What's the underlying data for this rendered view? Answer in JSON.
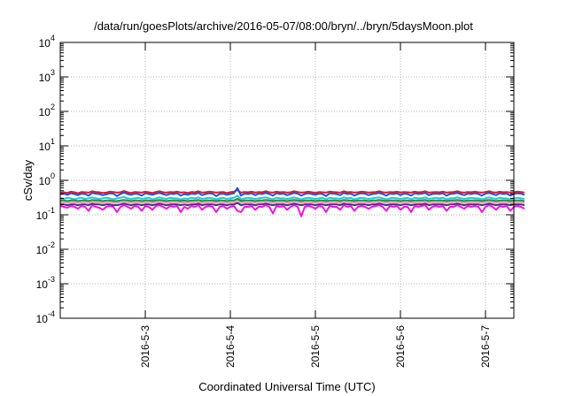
{
  "chart_data": {
    "type": "line",
    "title": "/data/run/goesPlots/archive/2016-05-07/08:00/bryn/../bryn/5daysMoon.plot",
    "xlabel": "Coordinated Universal Time (UTC)",
    "ylabel": "cSv/day",
    "yscale": "log",
    "ylim": [
      0.0001,
      10000
    ],
    "xlim": [
      "2016-05-02 00:00",
      "2016-05-07 08:00"
    ],
    "grid": true,
    "legend": "none",
    "y_ticks": [
      {
        "value": 0.0001,
        "base": "10",
        "exp": "-4"
      },
      {
        "value": 0.001,
        "base": "10",
        "exp": "-3"
      },
      {
        "value": 0.01,
        "base": "10",
        "exp": "-2"
      },
      {
        "value": 0.1,
        "base": "10",
        "exp": "-1"
      },
      {
        "value": 1,
        "base": "10",
        "exp": "0"
      },
      {
        "value": 10,
        "base": "10",
        "exp": "1"
      },
      {
        "value": 100,
        "base": "10",
        "exp": "2"
      },
      {
        "value": 1000,
        "base": "10",
        "exp": "3"
      },
      {
        "value": 10000,
        "base": "10",
        "exp": "4"
      }
    ],
    "x_ticks": [
      "2016-5-3",
      "2016-5-4",
      "2016-5-5",
      "2016-5-6",
      "2016-5-7"
    ],
    "sample_interval_hours": 1,
    "series": [
      {
        "color": "#e8141e",
        "values": [
          0.44,
          0.45,
          0.43,
          0.47,
          0.45,
          0.42,
          0.46,
          0.45,
          0.44,
          0.48,
          0.46,
          0.45,
          0.43,
          0.44,
          0.47,
          0.46,
          0.44,
          0.45,
          0.49,
          0.45,
          0.43,
          0.46,
          0.45,
          0.44,
          0.47,
          0.45,
          0.43,
          0.46,
          0.48,
          0.45,
          0.44,
          0.46,
          0.45,
          0.47,
          0.44,
          0.45,
          0.43,
          0.46,
          0.45,
          0.48,
          0.44,
          0.45,
          0.47,
          0.46,
          0.44,
          0.45,
          0.46,
          0.43,
          0.45,
          0.47,
          0.52,
          0.44,
          0.46,
          0.45,
          0.47,
          0.44,
          0.46,
          0.45,
          0.48,
          0.45,
          0.44,
          0.47,
          0.45,
          0.46,
          0.44,
          0.45,
          0.48,
          0.46,
          0.44,
          0.45,
          0.47,
          0.45,
          0.43,
          0.46,
          0.45,
          0.44,
          0.47,
          0.46,
          0.45,
          0.44,
          0.48,
          0.45,
          0.46,
          0.44,
          0.45,
          0.47,
          0.46,
          0.44,
          0.45,
          0.46,
          0.48,
          0.45,
          0.44,
          0.46,
          0.45,
          0.47,
          0.44,
          0.46,
          0.45,
          0.44,
          0.47,
          0.45,
          0.46,
          0.48,
          0.44,
          0.45,
          0.46,
          0.45,
          0.47,
          0.44,
          0.45,
          0.46,
          0.48,
          0.45,
          0.44,
          0.46,
          0.45,
          0.47,
          0.45,
          0.44,
          0.46,
          0.48,
          0.45,
          0.44,
          0.47,
          0.45,
          0.46,
          0.44,
          0.45,
          0.47,
          0.46,
          0.44
        ]
      },
      {
        "color": "#1e50e6",
        "values": [
          0.4,
          0.41,
          0.38,
          0.42,
          0.4,
          0.37,
          0.41,
          0.4,
          0.36,
          0.43,
          0.41,
          0.4,
          0.37,
          0.39,
          0.42,
          0.41,
          0.35,
          0.4,
          0.44,
          0.4,
          0.38,
          0.41,
          0.4,
          0.36,
          0.42,
          0.4,
          0.38,
          0.41,
          0.43,
          0.4,
          0.37,
          0.41,
          0.4,
          0.42,
          0.36,
          0.4,
          0.38,
          0.41,
          0.4,
          0.43,
          0.37,
          0.4,
          0.42,
          0.41,
          0.35,
          0.4,
          0.41,
          0.38,
          0.4,
          0.42,
          0.6,
          0.36,
          0.41,
          0.4,
          0.42,
          0.37,
          0.41,
          0.4,
          0.43,
          0.4,
          0.36,
          0.42,
          0.4,
          0.41,
          0.37,
          0.4,
          0.43,
          0.41,
          0.36,
          0.4,
          0.42,
          0.4,
          0.38,
          0.41,
          0.4,
          0.35,
          0.42,
          0.41,
          0.4,
          0.37,
          0.43,
          0.4,
          0.41,
          0.36,
          0.4,
          0.42,
          0.41,
          0.37,
          0.4,
          0.41,
          0.43,
          0.4,
          0.36,
          0.41,
          0.4,
          0.42,
          0.37,
          0.41,
          0.4,
          0.36,
          0.42,
          0.4,
          0.41,
          0.43,
          0.37,
          0.4,
          0.41,
          0.4,
          0.42,
          0.36,
          0.4,
          0.41,
          0.43,
          0.4,
          0.37,
          0.41,
          0.4,
          0.42,
          0.4,
          0.36,
          0.41,
          0.43,
          0.4,
          0.37,
          0.42,
          0.4,
          0.41,
          0.36,
          0.4,
          0.42,
          0.41,
          0.38
        ]
      },
      {
        "color": "#20c8d8",
        "values": [
          0.3,
          0.29,
          0.31,
          0.3,
          0.28,
          0.3,
          0.31,
          0.29,
          0.3,
          0.32,
          0.3,
          0.29,
          0.3,
          0.31,
          0.3,
          0.28,
          0.3,
          0.31,
          0.33,
          0.3,
          0.29,
          0.3,
          0.31,
          0.29,
          0.3,
          0.31,
          0.28,
          0.3,
          0.32,
          0.3,
          0.29,
          0.31,
          0.3,
          0.3,
          0.28,
          0.3,
          0.29,
          0.31,
          0.3,
          0.32,
          0.29,
          0.3,
          0.31,
          0.3,
          0.28,
          0.3,
          0.31,
          0.29,
          0.3,
          0.31,
          0.36,
          0.28,
          0.3,
          0.31,
          0.3,
          0.29,
          0.3,
          0.31,
          0.32,
          0.3,
          0.28,
          0.31,
          0.3,
          0.3,
          0.29,
          0.3,
          0.32,
          0.3,
          0.28,
          0.3,
          0.31,
          0.3,
          0.29,
          0.3,
          0.31,
          0.28,
          0.31,
          0.3,
          0.3,
          0.29,
          0.32,
          0.3,
          0.31,
          0.28,
          0.3,
          0.31,
          0.3,
          0.29,
          0.3,
          0.31,
          0.32,
          0.3,
          0.28,
          0.3,
          0.31,
          0.3,
          0.29,
          0.3,
          0.31,
          0.28,
          0.31,
          0.3,
          0.3,
          0.32,
          0.29,
          0.3,
          0.31,
          0.3,
          0.31,
          0.28,
          0.3,
          0.3,
          0.32,
          0.3,
          0.29,
          0.3,
          0.31,
          0.3,
          0.3,
          0.28,
          0.3,
          0.32,
          0.3,
          0.29,
          0.31,
          0.3,
          0.3,
          0.28,
          0.3,
          0.31,
          0.3,
          0.29
        ]
      },
      {
        "color": "#208c3c",
        "values": [
          0.26,
          0.26,
          0.25,
          0.26,
          0.26,
          0.25,
          0.26,
          0.26,
          0.25,
          0.27,
          0.26,
          0.26,
          0.25,
          0.26,
          0.26,
          0.25,
          0.25,
          0.26,
          0.27,
          0.26,
          0.25,
          0.26,
          0.26,
          0.25,
          0.26,
          0.26,
          0.25,
          0.26,
          0.27,
          0.26,
          0.25,
          0.26,
          0.26,
          0.26,
          0.25,
          0.26,
          0.25,
          0.26,
          0.26,
          0.27,
          0.25,
          0.26,
          0.26,
          0.26,
          0.25,
          0.26,
          0.26,
          0.25,
          0.26,
          0.26,
          0.29,
          0.25,
          0.26,
          0.26,
          0.26,
          0.25,
          0.26,
          0.26,
          0.27,
          0.26,
          0.25,
          0.26,
          0.26,
          0.26,
          0.25,
          0.26,
          0.27,
          0.26,
          0.25,
          0.26,
          0.26,
          0.26,
          0.25,
          0.26,
          0.26,
          0.25,
          0.26,
          0.26,
          0.26,
          0.25,
          0.27,
          0.26,
          0.26,
          0.25,
          0.26,
          0.26,
          0.26,
          0.25,
          0.26,
          0.26,
          0.27,
          0.26,
          0.25,
          0.26,
          0.26,
          0.26,
          0.25,
          0.26,
          0.26,
          0.25,
          0.26,
          0.26,
          0.26,
          0.27,
          0.25,
          0.26,
          0.26,
          0.26,
          0.26,
          0.25,
          0.26,
          0.26,
          0.27,
          0.26,
          0.25,
          0.26,
          0.26,
          0.26,
          0.26,
          0.25,
          0.26,
          0.27,
          0.26,
          0.25,
          0.26,
          0.26,
          0.26,
          0.25,
          0.26,
          0.26,
          0.26,
          0.25
        ]
      },
      {
        "color": "#f0a0b4",
        "values": [
          0.23,
          0.23,
          0.22,
          0.23,
          0.23,
          0.22,
          0.23,
          0.23,
          0.22,
          0.24,
          0.23,
          0.23,
          0.22,
          0.23,
          0.23,
          0.22,
          0.22,
          0.23,
          0.24,
          0.23,
          0.22,
          0.23,
          0.23,
          0.22,
          0.23,
          0.23,
          0.22,
          0.23,
          0.24,
          0.23,
          0.22,
          0.23,
          0.23,
          0.23,
          0.22,
          0.23,
          0.22,
          0.23,
          0.23,
          0.24,
          0.22,
          0.23,
          0.23,
          0.23,
          0.22,
          0.23,
          0.23,
          0.22,
          0.23,
          0.23,
          0.25,
          0.22,
          0.23,
          0.23,
          0.23,
          0.22,
          0.23,
          0.23,
          0.24,
          0.23,
          0.22,
          0.23,
          0.23,
          0.23,
          0.22,
          0.23,
          0.24,
          0.23,
          0.22,
          0.23,
          0.23,
          0.23,
          0.22,
          0.23,
          0.23,
          0.22,
          0.23,
          0.23,
          0.23,
          0.22,
          0.24,
          0.23,
          0.23,
          0.22,
          0.23,
          0.23,
          0.23,
          0.22,
          0.23,
          0.23,
          0.24,
          0.23,
          0.22,
          0.23,
          0.23,
          0.23,
          0.22,
          0.23,
          0.23,
          0.22,
          0.23,
          0.23,
          0.23,
          0.24,
          0.22,
          0.23,
          0.23,
          0.23,
          0.23,
          0.22,
          0.23,
          0.23,
          0.24,
          0.23,
          0.22,
          0.23,
          0.23,
          0.23,
          0.23,
          0.22,
          0.23,
          0.24,
          0.23,
          0.22,
          0.23,
          0.23,
          0.23,
          0.22,
          0.23,
          0.23,
          0.23,
          0.22
        ]
      },
      {
        "color": "#50288c",
        "values": [
          0.2,
          0.2,
          0.19,
          0.2,
          0.2,
          0.19,
          0.2,
          0.2,
          0.19,
          0.21,
          0.2,
          0.2,
          0.19,
          0.2,
          0.2,
          0.19,
          0.19,
          0.2,
          0.21,
          0.2,
          0.19,
          0.2,
          0.2,
          0.19,
          0.2,
          0.2,
          0.19,
          0.2,
          0.21,
          0.2,
          0.19,
          0.2,
          0.2,
          0.2,
          0.19,
          0.2,
          0.19,
          0.2,
          0.2,
          0.21,
          0.19,
          0.2,
          0.2,
          0.2,
          0.19,
          0.2,
          0.2,
          0.19,
          0.2,
          0.2,
          0.22,
          0.19,
          0.2,
          0.2,
          0.2,
          0.19,
          0.2,
          0.2,
          0.21,
          0.2,
          0.19,
          0.2,
          0.2,
          0.2,
          0.19,
          0.2,
          0.21,
          0.2,
          0.19,
          0.2,
          0.2,
          0.2,
          0.19,
          0.2,
          0.2,
          0.19,
          0.2,
          0.2,
          0.2,
          0.19,
          0.21,
          0.2,
          0.2,
          0.19,
          0.2,
          0.2,
          0.2,
          0.19,
          0.2,
          0.2,
          0.21,
          0.2,
          0.19,
          0.2,
          0.2,
          0.2,
          0.19,
          0.2,
          0.2,
          0.19,
          0.2,
          0.2,
          0.2,
          0.21,
          0.19,
          0.2,
          0.2,
          0.2,
          0.2,
          0.19,
          0.2,
          0.2,
          0.21,
          0.2,
          0.19,
          0.2,
          0.2,
          0.2,
          0.2,
          0.19,
          0.2,
          0.21,
          0.2,
          0.19,
          0.2,
          0.2,
          0.2,
          0.19,
          0.2,
          0.2,
          0.2,
          0.19
        ]
      },
      {
        "color": "#f014dc",
        "values": [
          0.18,
          0.17,
          0.16,
          0.18,
          0.17,
          0.15,
          0.18,
          0.17,
          0.13,
          0.19,
          0.17,
          0.16,
          0.14,
          0.17,
          0.18,
          0.17,
          0.12,
          0.17,
          0.19,
          0.17,
          0.15,
          0.18,
          0.17,
          0.13,
          0.18,
          0.17,
          0.14,
          0.18,
          0.19,
          0.17,
          0.15,
          0.18,
          0.17,
          0.18,
          0.12,
          0.17,
          0.15,
          0.18,
          0.17,
          0.19,
          0.14,
          0.17,
          0.18,
          0.17,
          0.12,
          0.17,
          0.18,
          0.15,
          0.17,
          0.18,
          0.13,
          0.12,
          0.17,
          0.17,
          0.18,
          0.14,
          0.17,
          0.17,
          0.19,
          0.17,
          0.11,
          0.18,
          0.17,
          0.18,
          0.14,
          0.17,
          0.19,
          0.17,
          0.09,
          0.17,
          0.18,
          0.17,
          0.15,
          0.18,
          0.17,
          0.12,
          0.18,
          0.17,
          0.17,
          0.14,
          0.19,
          0.17,
          0.18,
          0.13,
          0.17,
          0.18,
          0.17,
          0.15,
          0.17,
          0.18,
          0.19,
          0.17,
          0.13,
          0.18,
          0.17,
          0.18,
          0.14,
          0.17,
          0.17,
          0.12,
          0.18,
          0.17,
          0.18,
          0.19,
          0.14,
          0.17,
          0.18,
          0.17,
          0.18,
          0.13,
          0.17,
          0.17,
          0.19,
          0.17,
          0.15,
          0.18,
          0.17,
          0.18,
          0.17,
          0.12,
          0.17,
          0.19,
          0.17,
          0.14,
          0.18,
          0.17,
          0.18,
          0.13,
          0.17,
          0.18,
          0.17,
          0.15
        ]
      }
    ]
  }
}
